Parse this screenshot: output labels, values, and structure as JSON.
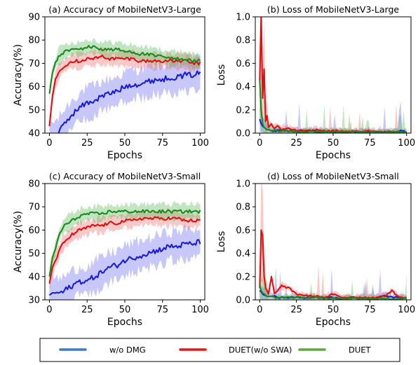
{
  "legend": {
    "items": [
      {
        "label": "w/o DMG",
        "color": "#1a1fd6"
      },
      {
        "label": "DUET(w/o SWA)",
        "color": "#e01010"
      },
      {
        "label": "DUET",
        "color": "#1e8a1e"
      }
    ],
    "legend_colors": [
      "#3a78d6",
      "#ee1111",
      "#5aaa3a"
    ]
  },
  "chart_data": [
    {
      "id": "a",
      "type": "line",
      "title": "(a) Accuracy of MobileNetV3-Large",
      "xlabel": "Epochs",
      "ylabel": "Accuracy(%)",
      "xlim": [
        -3,
        103
      ],
      "ylim": [
        40,
        90
      ],
      "xticks": [
        0,
        25,
        50,
        75,
        100
      ],
      "yticks": [
        40,
        50,
        60,
        70,
        80,
        90
      ],
      "shaded_bands": true,
      "x": [
        0,
        2,
        4,
        6,
        8,
        10,
        15,
        20,
        25,
        30,
        35,
        40,
        45,
        50,
        55,
        60,
        65,
        70,
        75,
        80,
        85,
        90,
        95,
        100
      ],
      "series": [
        {
          "name": "w/o DMG",
          "color": "#1a1fd6",
          "values": [
            40,
            38,
            39,
            40,
            42,
            44,
            48,
            51,
            53,
            54,
            56,
            57,
            58,
            60,
            61,
            61,
            62,
            63,
            63,
            64,
            64,
            65,
            65,
            66
          ]
        },
        {
          "name": "DUET(w/o SWA)",
          "color": "#e01010",
          "values": [
            43,
            56,
            63,
            66,
            68,
            69,
            71,
            71,
            72,
            72,
            73,
            72,
            72,
            72,
            72,
            71,
            71,
            71,
            71,
            71,
            71,
            71,
            70,
            70
          ]
        },
        {
          "name": "DUET",
          "color": "#1e8a1e",
          "values": [
            57,
            66,
            70,
            73,
            74,
            75,
            76,
            76,
            77,
            77,
            76,
            76,
            76,
            75,
            75,
            74,
            74,
            73,
            73,
            72,
            72,
            72,
            71,
            71
          ]
        }
      ]
    },
    {
      "id": "b",
      "type": "line",
      "title": "(b) Loss of MobileNetV3-Large",
      "xlabel": "Epochs",
      "ylabel": "Loss",
      "xlim": [
        -3,
        103
      ],
      "ylim": [
        0,
        1.0
      ],
      "xticks": [
        0,
        25,
        50,
        75,
        100
      ],
      "yticks": [
        0.0,
        0.2,
        0.4,
        0.6,
        0.8,
        1.0
      ],
      "shaded_bands": true,
      "x": [
        0,
        1,
        2,
        3,
        4,
        5,
        6,
        8,
        10,
        12,
        15,
        20,
        25,
        30,
        35,
        40,
        45,
        50,
        55,
        60,
        65,
        70,
        75,
        80,
        85,
        90,
        95,
        100
      ],
      "series": [
        {
          "name": "w/o DMG",
          "color": "#1a1fd6",
          "values": [
            0.12,
            0.08,
            0.06,
            0.05,
            0.04,
            0.03,
            0.03,
            0.02,
            0.02,
            0.02,
            0.02,
            0.02,
            0.02,
            0.01,
            0.02,
            0.01,
            0.01,
            0.01,
            0.01,
            0.01,
            0.01,
            0.01,
            0.01,
            0.01,
            0.01,
            0.01,
            0.02,
            0.01
          ]
        },
        {
          "name": "DUET(w/o SWA)",
          "color": "#e01010",
          "values": [
            0.45,
            1.0,
            0.3,
            0.55,
            0.1,
            0.15,
            0.05,
            0.08,
            0.04,
            0.06,
            0.03,
            0.04,
            0.02,
            0.02,
            0.02,
            0.03,
            0.02,
            0.02,
            0.02,
            0.01,
            0.02,
            0.01,
            0.02,
            0.01,
            0.01,
            0.01,
            0.01,
            0.01
          ]
        },
        {
          "name": "DUET",
          "color": "#1e8a1e",
          "values": [
            0.45,
            0.2,
            0.08,
            0.05,
            0.04,
            0.03,
            0.03,
            0.02,
            0.02,
            0.02,
            0.02,
            0.02,
            0.01,
            0.01,
            0.01,
            0.01,
            0.01,
            0.01,
            0.01,
            0.01,
            0.01,
            0.01,
            0.01,
            0.01,
            0.01,
            0.01,
            0.01,
            0.01
          ]
        }
      ]
    },
    {
      "id": "c",
      "type": "line",
      "title": "(c) Accuracy of MobileNetV3-Small",
      "xlabel": "Epochs",
      "ylabel": "Accuracy(%)",
      "xlim": [
        -3,
        103
      ],
      "ylim": [
        30,
        80
      ],
      "xticks": [
        0,
        25,
        50,
        75,
        100
      ],
      "yticks": [
        30,
        40,
        50,
        60,
        70,
        80
      ],
      "shaded_bands": true,
      "x": [
        0,
        2,
        4,
        6,
        8,
        10,
        15,
        20,
        25,
        30,
        35,
        40,
        45,
        50,
        55,
        60,
        65,
        70,
        75,
        80,
        85,
        90,
        95,
        100
      ],
      "series": [
        {
          "name": "w/o DMG",
          "color": "#1a1fd6",
          "values": [
            32,
            33,
            33,
            33,
            33,
            34,
            36,
            38,
            38,
            40,
            42,
            44,
            45,
            47,
            48,
            49,
            50,
            51,
            52,
            53,
            53,
            54,
            54,
            55
          ]
        },
        {
          "name": "DUET(w/o SWA)",
          "color": "#e01010",
          "values": [
            37,
            44,
            47,
            50,
            53,
            55,
            58,
            60,
            61,
            62,
            62,
            63,
            63,
            64,
            64,
            65,
            65,
            65,
            65,
            65,
            65,
            64,
            64,
            64
          ]
        },
        {
          "name": "DUET",
          "color": "#1e8a1e",
          "values": [
            40,
            48,
            52,
            57,
            60,
            62,
            64,
            66,
            67,
            67,
            67,
            68,
            68,
            68,
            68,
            68,
            68,
            68,
            68,
            68,
            68,
            68,
            68,
            68
          ]
        }
      ]
    },
    {
      "id": "d",
      "type": "line",
      "title": "(d) Loss of MobileNetV3-Small",
      "xlabel": "Epochs",
      "ylabel": "Loss",
      "xlim": [
        -3,
        103
      ],
      "ylim": [
        0,
        1.0
      ],
      "xticks": [
        0,
        25,
        50,
        75,
        100
      ],
      "yticks": [
        0.0,
        0.2,
        0.4,
        0.6,
        0.8,
        1.0
      ],
      "shaded_bands": true,
      "x": [
        0,
        1,
        2,
        3,
        4,
        5,
        6,
        8,
        10,
        12,
        15,
        20,
        25,
        30,
        35,
        40,
        45,
        50,
        55,
        60,
        65,
        70,
        75,
        80,
        85,
        90,
        95,
        100
      ],
      "series": [
        {
          "name": "w/o DMG",
          "color": "#1a1fd6",
          "values": [
            0.08,
            0.07,
            0.05,
            0.04,
            0.04,
            0.03,
            0.03,
            0.03,
            0.03,
            0.02,
            0.02,
            0.02,
            0.02,
            0.02,
            0.02,
            0.02,
            0.02,
            0.02,
            0.01,
            0.02,
            0.02,
            0.02,
            0.01,
            0.02,
            0.04,
            0.02,
            0.02,
            0.01
          ]
        },
        {
          "name": "DUET(w/o SWA)",
          "color": "#e01010",
          "values": [
            0.1,
            0.6,
            0.55,
            0.2,
            0.1,
            0.08,
            0.05,
            0.2,
            0.05,
            0.08,
            0.12,
            0.1,
            0.05,
            0.04,
            0.03,
            0.03,
            0.02,
            0.05,
            0.02,
            0.02,
            0.02,
            0.02,
            0.02,
            0.02,
            0.03,
            0.08,
            0.02,
            0.02
          ]
        },
        {
          "name": "DUET",
          "color": "#1e8a1e",
          "values": [
            0.12,
            0.08,
            0.06,
            0.05,
            0.04,
            0.03,
            0.03,
            0.03,
            0.02,
            0.02,
            0.02,
            0.02,
            0.02,
            0.02,
            0.02,
            0.02,
            0.01,
            0.01,
            0.01,
            0.01,
            0.01,
            0.01,
            0.01,
            0.01,
            0.01,
            0.01,
            0.01,
            0.01
          ]
        }
      ]
    }
  ]
}
